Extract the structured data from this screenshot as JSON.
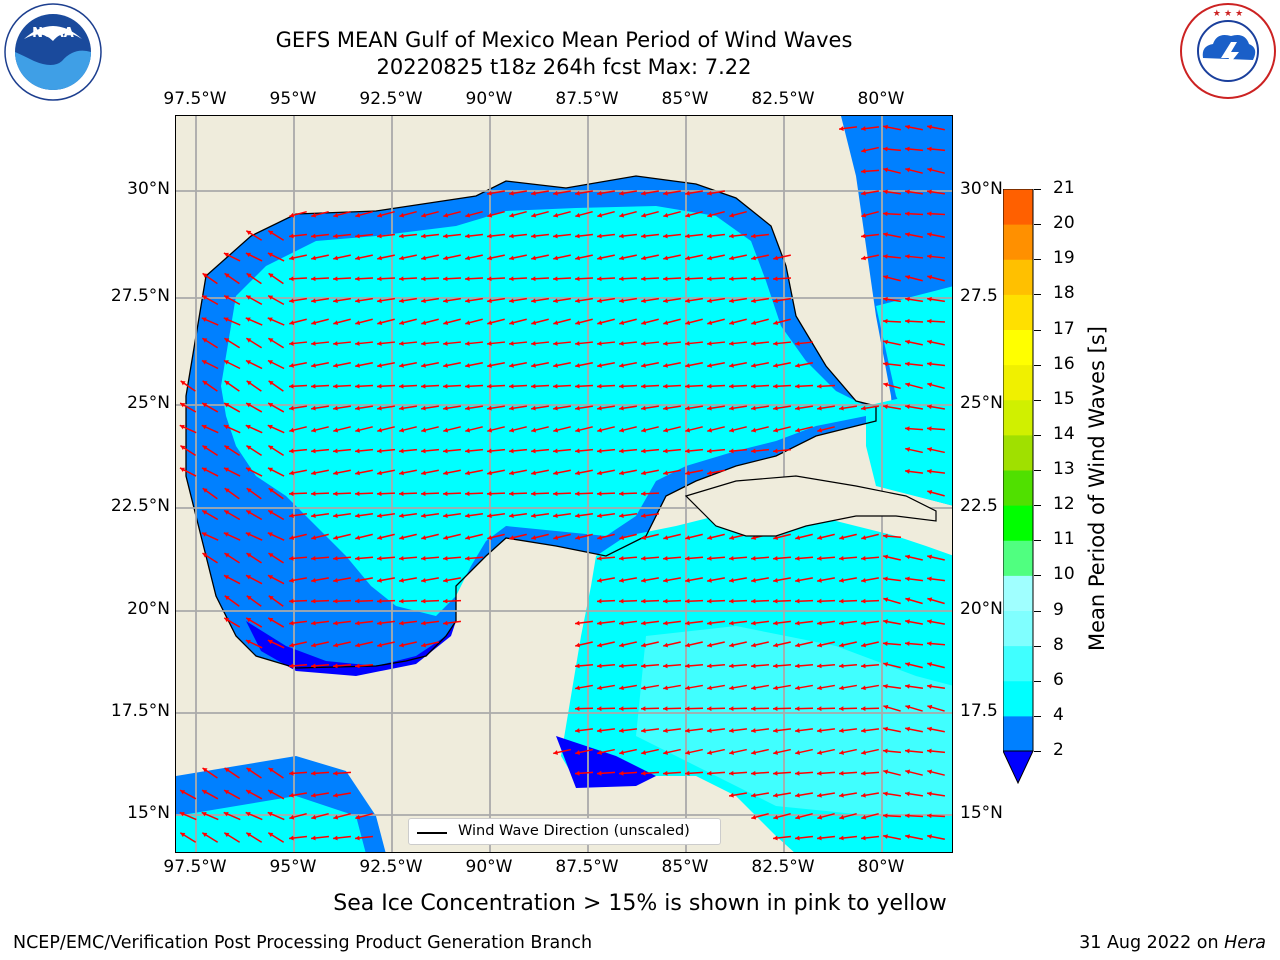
{
  "title": {
    "line1": "GEFS MEAN Gulf of Mexico Mean Period of Wind Waves",
    "line2": "20220825 t18z 264h fcst   Max: 7.22"
  },
  "map": {
    "lon_labels": [
      "97.5°W",
      "95°W",
      "92.5°W",
      "90°W",
      "87.5°W",
      "85°W",
      "82.5°W",
      "80°W"
    ],
    "lat_labels_left": [
      "30°N",
      "27.5°N",
      "25°N",
      "22.5°N",
      "20°N",
      "17.5°N",
      "15°N"
    ],
    "lat_labels_right": [
      "30°N",
      "27.5",
      "25°N",
      "22.5",
      "20°N",
      "17.5",
      "15°N"
    ],
    "legend": "Wind Wave Direction (unscaled)",
    "colors": {
      "land": "#efecdc",
      "ocean_band_2_4": "#0080ff",
      "ocean_band_4_6": "#00ffff",
      "ocean_band_6_8": "#40ffff",
      "ocean_below_2": "#0000ff",
      "arrow": "#ff0000"
    }
  },
  "colorbar": {
    "label": "Mean Period of Wind Waves [s]",
    "ticks": [
      "2",
      "4",
      "6",
      "8",
      "9",
      "10",
      "11",
      "12",
      "13",
      "14",
      "15",
      "16",
      "17",
      "18",
      "19",
      "20",
      "21"
    ],
    "colors": [
      "#0080ff",
      "#00ffff",
      "#40ffff",
      "#80ffff",
      "#a0ffff",
      "#50ff80",
      "#00ff00",
      "#50e000",
      "#a0e000",
      "#d0f000",
      "#f0f000",
      "#ffff00",
      "#ffe000",
      "#ffc000",
      "#ff9000",
      "#ff6000",
      "#ff3000",
      "#ff0000"
    ],
    "under_color": "#0000ff"
  },
  "subnote": "Sea Ice Concentration > 15% is shown in pink to yellow",
  "footer": {
    "left": "NCEP/EMC/Verification Post Processing Product Generation Branch",
    "right_date": "31 Aug 2022 on ",
    "right_host": "Hera"
  },
  "logos": {
    "noaa_text": "NOAA",
    "noaa_ring": "NATIONAL OCEANIC AND ATMOSPHERIC ADMINISTRATION · U.S. DEPARTMENT OF COMMERCE",
    "nws_ring": "NATIONAL WEATHER SERVICE"
  }
}
